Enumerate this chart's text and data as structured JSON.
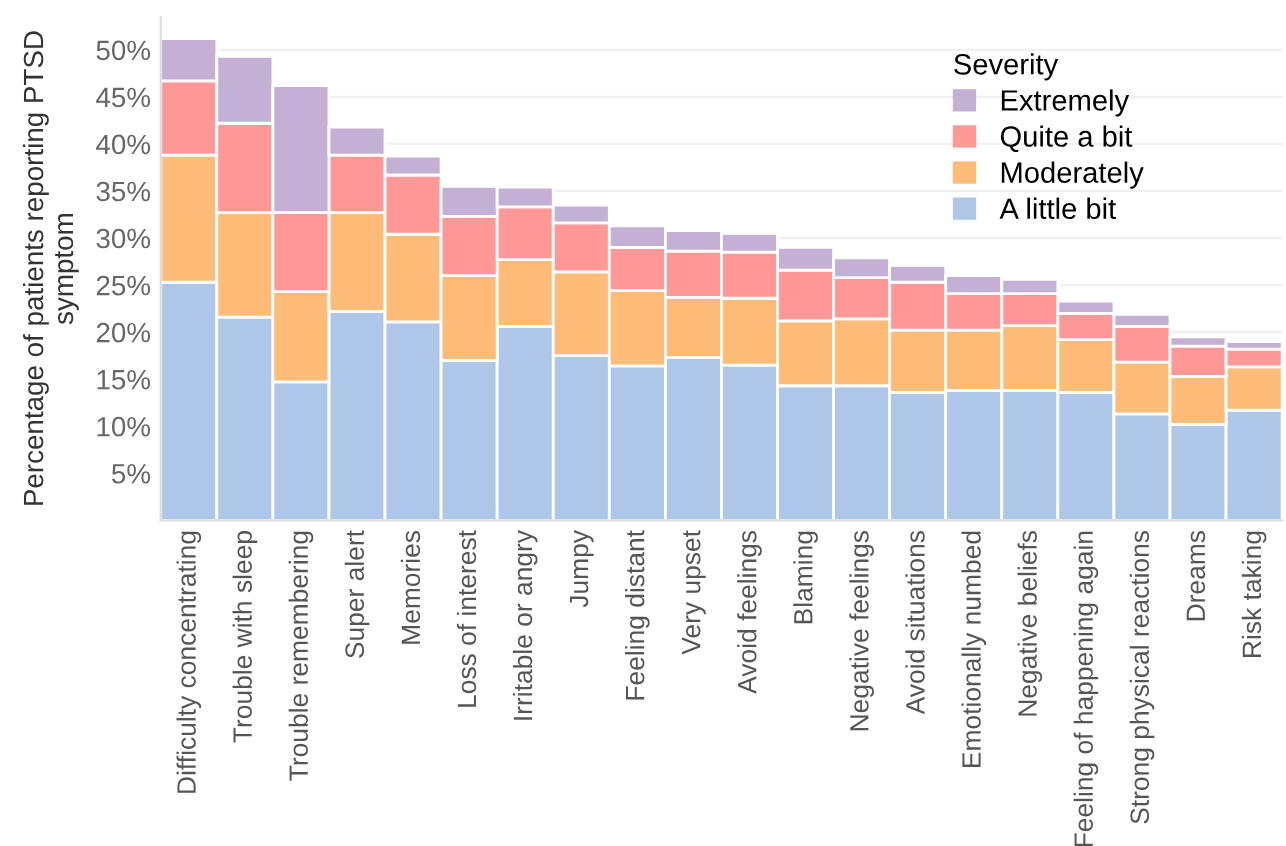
{
  "chart_data": {
    "type": "bar",
    "stacked": true,
    "ylabel": "Percentage of patients reporting PTSD\nsymptom",
    "legend_title": "Severity",
    "categories": [
      "Difficulty concentrating",
      "Trouble with sleep",
      "Trouble remembering",
      "Super alert",
      "Memories",
      "Loss of interest",
      "Irritable or angry",
      "Jumpy",
      "Feeling distant",
      "Very upset",
      "Avoid feelings",
      "Blaming",
      "Negative feelings",
      "Avoid situations",
      "Emotionally numbed",
      "Negative beliefs",
      "Feeling of happening again",
      "Strong physical reactions",
      "Dreams",
      "Risk taking"
    ],
    "series": [
      {
        "name": "A little bit",
        "color": "#aec7e8",
        "values": [
          25.3,
          21.6,
          14.7,
          22.2,
          21.1,
          17.0,
          20.6,
          17.5,
          16.4,
          17.3,
          16.5,
          14.3,
          14.3,
          13.6,
          13.8,
          13.8,
          13.6,
          11.3,
          10.2,
          11.7
        ]
      },
      {
        "name": "Moderately",
        "color": "#ffbb78",
        "values": [
          13.5,
          11.1,
          9.6,
          10.5,
          9.3,
          9.0,
          7.1,
          8.9,
          8.0,
          6.4,
          7.1,
          6.9,
          7.1,
          6.6,
          6.4,
          6.9,
          5.6,
          5.5,
          5.1,
          4.6
        ]
      },
      {
        "name": "Quite a bit",
        "color": "#ff9896",
        "values": [
          7.9,
          9.5,
          8.4,
          6.1,
          6.3,
          6.3,
          5.6,
          5.2,
          4.6,
          4.9,
          4.9,
          5.4,
          4.4,
          5.1,
          3.9,
          3.4,
          2.8,
          3.8,
          3.2,
          1.9
        ]
      },
      {
        "name": "Extremely",
        "color": "#c5b0d5",
        "values": [
          4.5,
          7.1,
          13.5,
          3.0,
          2.0,
          3.2,
          2.1,
          1.9,
          2.3,
          2.2,
          2.0,
          2.4,
          2.1,
          1.8,
          1.9,
          1.5,
          1.3,
          1.3,
          1.0,
          0.8
        ]
      }
    ],
    "ylim": [
      0,
      53.5
    ],
    "yticks": [
      {
        "value": 5,
        "label": "5%"
      },
      {
        "value": 10,
        "label": "10%"
      },
      {
        "value": 15,
        "label": "15%"
      },
      {
        "value": 20,
        "label": "20%"
      },
      {
        "value": 25,
        "label": "25%"
      },
      {
        "value": 30,
        "label": "30%"
      },
      {
        "value": 35,
        "label": "35%"
      },
      {
        "value": 40,
        "label": "40%"
      },
      {
        "value": 45,
        "label": "45%"
      },
      {
        "value": 50,
        "label": "50%"
      }
    ],
    "grid": "y",
    "legend": "top right"
  }
}
